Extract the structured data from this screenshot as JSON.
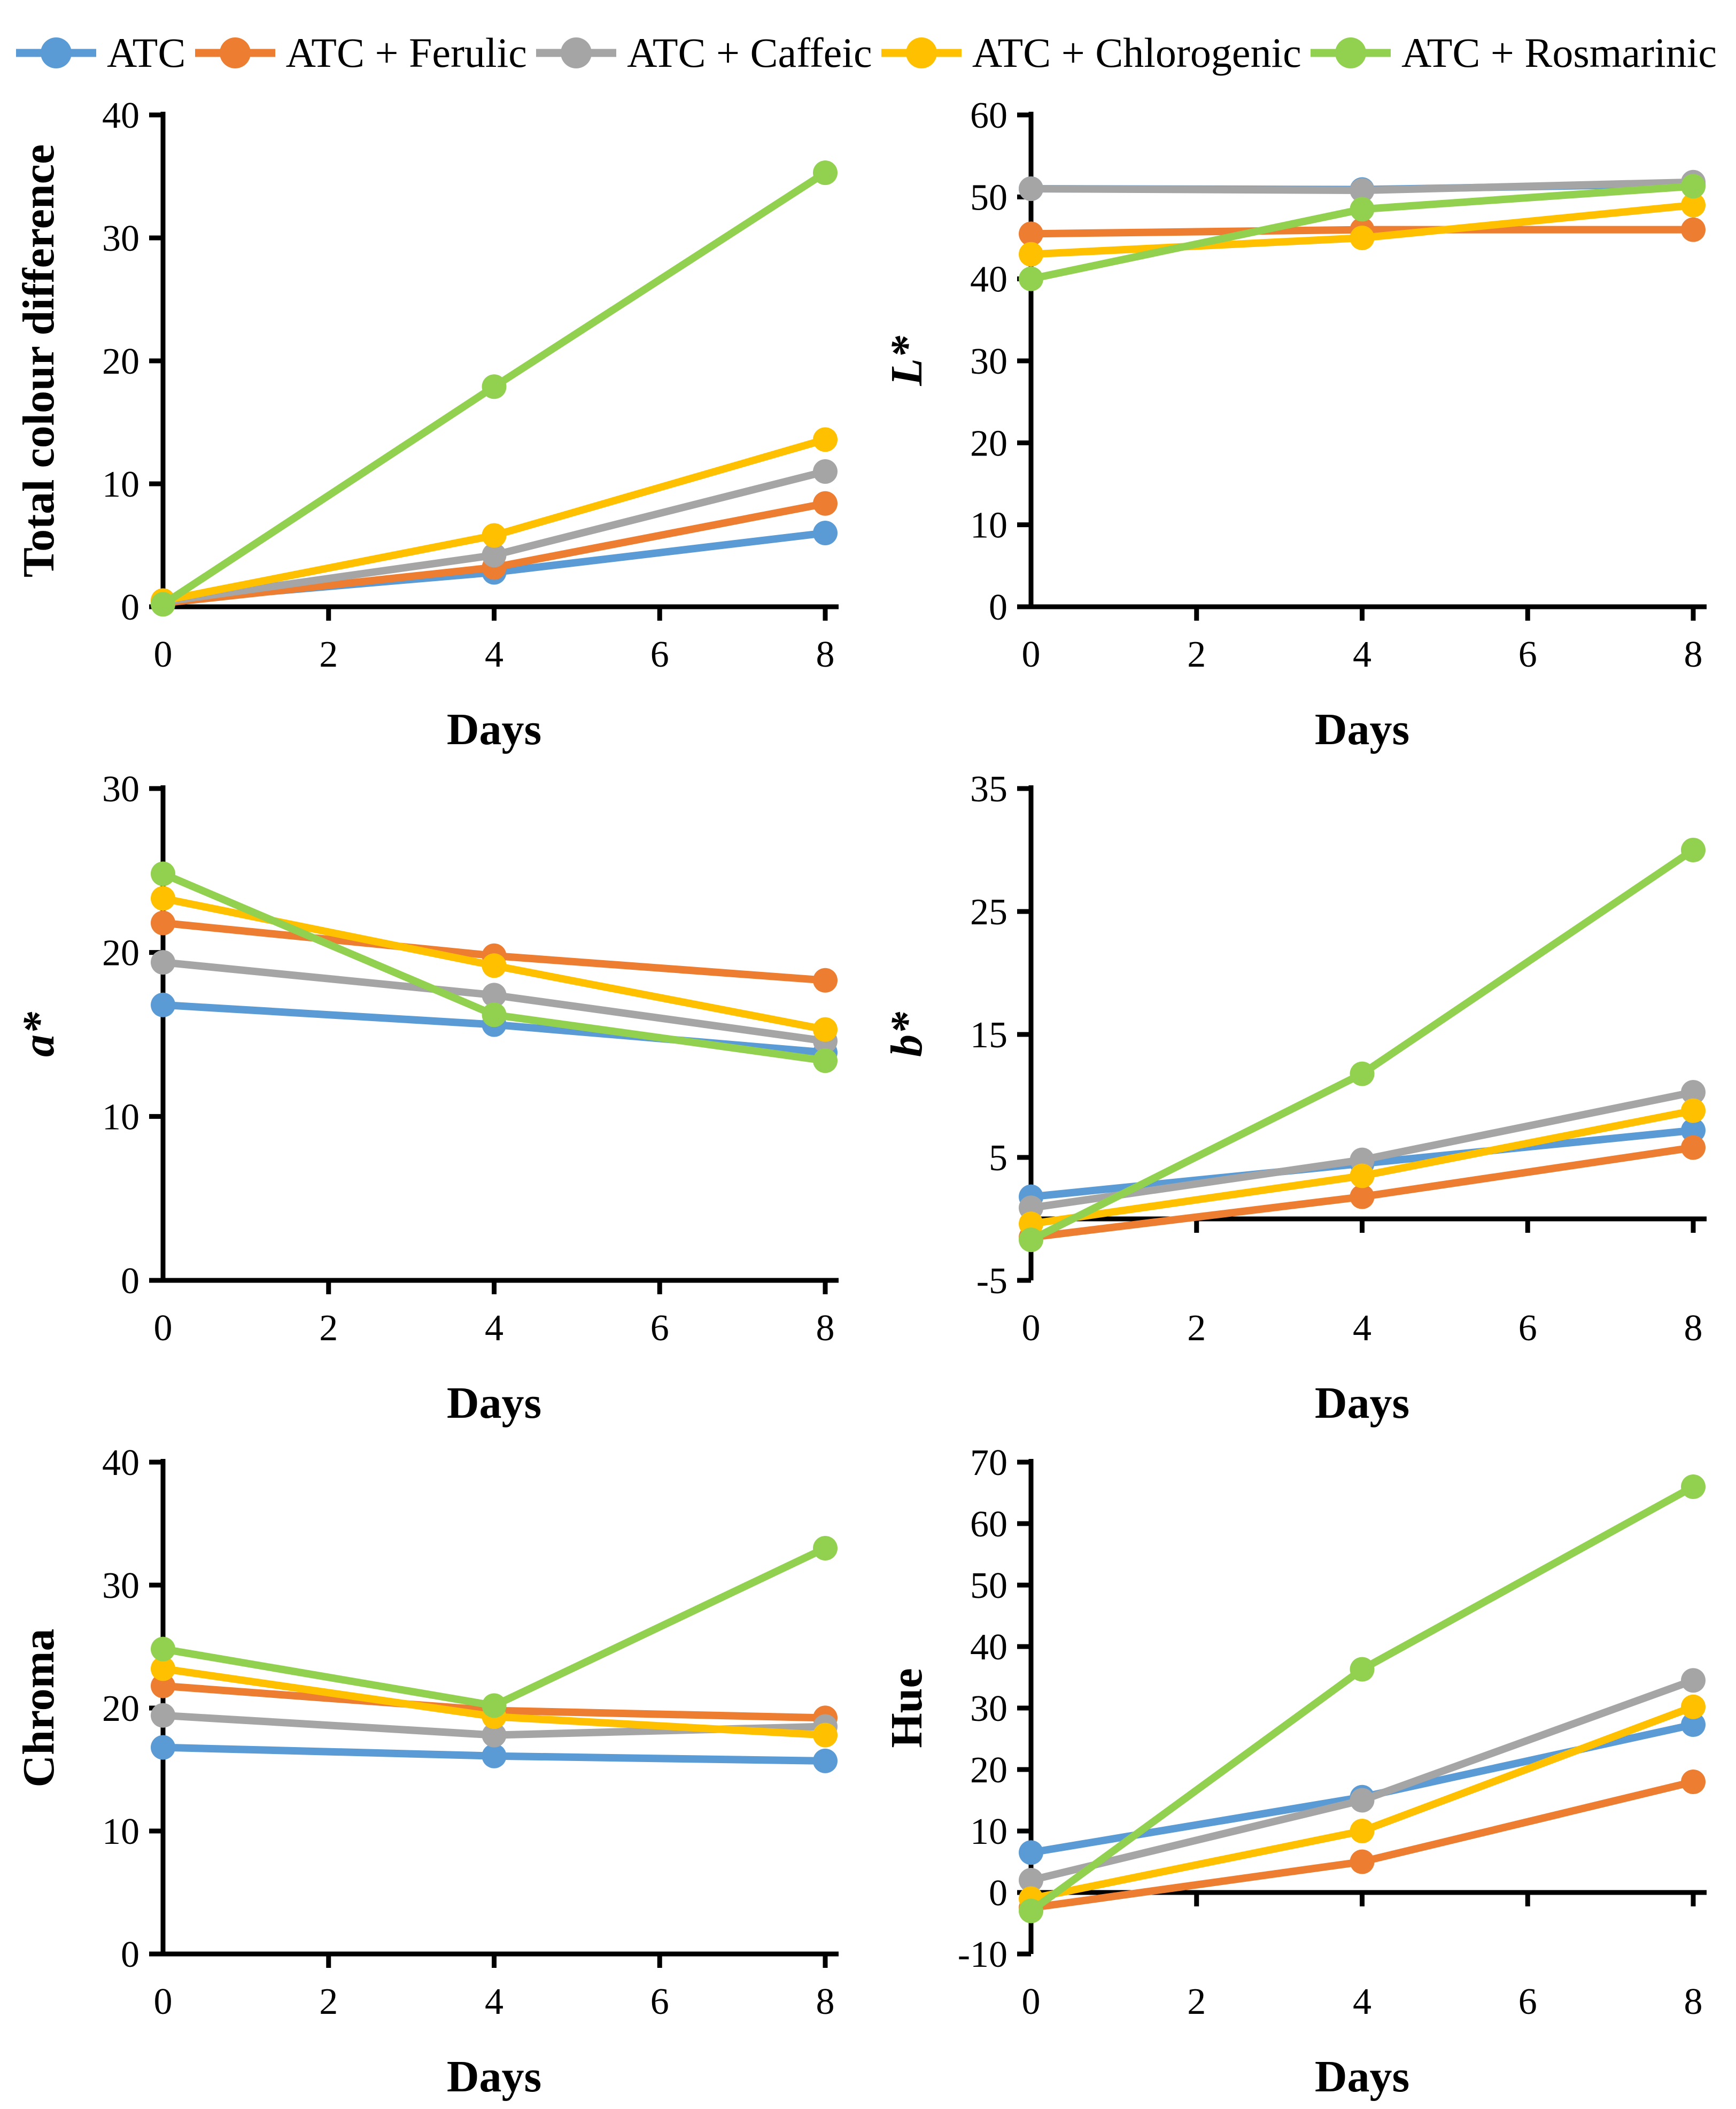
{
  "legend": {
    "position": "top",
    "items": [
      {
        "label": "ATC",
        "color": "#5B9BD5"
      },
      {
        "label": "ATC + Ferulic",
        "color": "#ED7D31"
      },
      {
        "label": "ATC + Caffeic",
        "color": "#A5A5A5"
      },
      {
        "label": "ATC + Chlorogenic",
        "color": "#FFC000"
      },
      {
        "label": "ATC + Rosmarinic",
        "color": "#92D050"
      }
    ]
  },
  "chart_data": [
    {
      "type": "line",
      "ylabel": "Total colour difference",
      "ylabel_italic": false,
      "xlabel": "Days",
      "x": [
        0,
        4,
        8
      ],
      "xticks": [
        0,
        2,
        4,
        6,
        8
      ],
      "ylim": [
        0,
        40
      ],
      "yticks": [
        0,
        10,
        20,
        30,
        40
      ],
      "axis_cross_y": 0,
      "grid": false,
      "series": [
        {
          "name": "ATC",
          "color": "#5B9BD5",
          "values": [
            0.5,
            2.8,
            6.0
          ]
        },
        {
          "name": "ATC + Ferulic",
          "color": "#ED7D31",
          "values": [
            0.3,
            3.2,
            8.4
          ]
        },
        {
          "name": "ATC + Caffeic",
          "color": "#A5A5A5",
          "values": [
            0.4,
            4.2,
            11.0
          ]
        },
        {
          "name": "ATC + Chlorogenic",
          "color": "#FFC000",
          "values": [
            0.5,
            5.8,
            13.6
          ]
        },
        {
          "name": "ATC + Rosmarinic",
          "color": "#92D050",
          "values": [
            0.2,
            17.9,
            35.3
          ]
        }
      ]
    },
    {
      "type": "line",
      "ylabel": "L*",
      "ylabel_italic": true,
      "xlabel": "Days",
      "x": [
        0,
        4,
        8
      ],
      "xticks": [
        0,
        2,
        4,
        6,
        8
      ],
      "ylim": [
        0,
        60
      ],
      "yticks": [
        0,
        10,
        20,
        30,
        40,
        50,
        60
      ],
      "axis_cross_y": 0,
      "grid": false,
      "series": [
        {
          "name": "ATC",
          "color": "#5B9BD5",
          "values": [
            51.0,
            50.9,
            51.6
          ]
        },
        {
          "name": "ATC + Ferulic",
          "color": "#ED7D31",
          "values": [
            45.5,
            46.0,
            46.0
          ]
        },
        {
          "name": "ATC + Caffeic",
          "color": "#A5A5A5",
          "values": [
            51.0,
            50.8,
            51.8
          ]
        },
        {
          "name": "ATC + Chlorogenic",
          "color": "#FFC000",
          "values": [
            43.0,
            45.0,
            49.0
          ]
        },
        {
          "name": "ATC + Rosmarinic",
          "color": "#92D050",
          "values": [
            40.0,
            48.5,
            51.3
          ]
        }
      ]
    },
    {
      "type": "line",
      "ylabel": "a*",
      "ylabel_italic": true,
      "xlabel": "Days",
      "x": [
        0,
        4,
        8
      ],
      "xticks": [
        0,
        2,
        4,
        6,
        8
      ],
      "ylim": [
        0,
        30
      ],
      "yticks": [
        0,
        10,
        20,
        30
      ],
      "axis_cross_y": 0,
      "grid": false,
      "series": [
        {
          "name": "ATC",
          "color": "#5B9BD5",
          "values": [
            16.8,
            15.6,
            13.9
          ]
        },
        {
          "name": "ATC + Ferulic",
          "color": "#ED7D31",
          "values": [
            21.8,
            19.8,
            18.3
          ]
        },
        {
          "name": "ATC + Caffeic",
          "color": "#A5A5A5",
          "values": [
            19.4,
            17.4,
            14.6
          ]
        },
        {
          "name": "ATC + Chlorogenic",
          "color": "#FFC000",
          "values": [
            23.3,
            19.2,
            15.3
          ]
        },
        {
          "name": "ATC + Rosmarinic",
          "color": "#92D050",
          "values": [
            24.8,
            16.2,
            13.4
          ]
        }
      ]
    },
    {
      "type": "line",
      "ylabel": "b*",
      "ylabel_italic": true,
      "xlabel": "Days",
      "x": [
        0,
        4,
        8
      ],
      "xticks": [
        0,
        2,
        4,
        6,
        8
      ],
      "ylim": [
        -5,
        35
      ],
      "yticks": [
        -5,
        5,
        15,
        25,
        35
      ],
      "axis_cross_y": 0,
      "grid": false,
      "series": [
        {
          "name": "ATC",
          "color": "#5B9BD5",
          "values": [
            1.8,
            4.5,
            7.2
          ]
        },
        {
          "name": "ATC + Ferulic",
          "color": "#ED7D31",
          "values": [
            -1.5,
            1.8,
            5.8
          ]
        },
        {
          "name": "ATC + Caffeic",
          "color": "#A5A5A5",
          "values": [
            0.9,
            4.8,
            10.3
          ]
        },
        {
          "name": "ATC + Chlorogenic",
          "color": "#FFC000",
          "values": [
            -0.4,
            3.5,
            8.8
          ]
        },
        {
          "name": "ATC + Rosmarinic",
          "color": "#92D050",
          "values": [
            -1.7,
            11.8,
            30.0
          ]
        }
      ]
    },
    {
      "type": "line",
      "ylabel": "Chroma",
      "ylabel_italic": false,
      "xlabel": "Days",
      "x": [
        0,
        4,
        8
      ],
      "xticks": [
        0,
        2,
        4,
        6,
        8
      ],
      "ylim": [
        0,
        40
      ],
      "yticks": [
        0,
        10,
        20,
        30,
        40
      ],
      "axis_cross_y": 0,
      "grid": false,
      "series": [
        {
          "name": "ATC",
          "color": "#5B9BD5",
          "values": [
            16.8,
            16.1,
            15.7
          ]
        },
        {
          "name": "ATC + Ferulic",
          "color": "#ED7D31",
          "values": [
            21.8,
            19.8,
            19.2
          ]
        },
        {
          "name": "ATC + Caffeic",
          "color": "#A5A5A5",
          "values": [
            19.4,
            17.8,
            18.5
          ]
        },
        {
          "name": "ATC + Chlorogenic",
          "color": "#FFC000",
          "values": [
            23.2,
            19.3,
            17.8
          ]
        },
        {
          "name": "ATC + Rosmarinic",
          "color": "#92D050",
          "values": [
            24.8,
            20.2,
            33.0
          ]
        }
      ]
    },
    {
      "type": "line",
      "ylabel": "Hue",
      "ylabel_italic": false,
      "xlabel": "Days",
      "x": [
        0,
        4,
        8
      ],
      "xticks": [
        0,
        2,
        4,
        6,
        8
      ],
      "ylim": [
        -10,
        70
      ],
      "yticks": [
        -10,
        0,
        10,
        20,
        30,
        40,
        50,
        60,
        70
      ],
      "axis_cross_y": 0,
      "grid": false,
      "series": [
        {
          "name": "ATC",
          "color": "#5B9BD5",
          "values": [
            6.5,
            15.5,
            27.3
          ]
        },
        {
          "name": "ATC + Ferulic",
          "color": "#ED7D31",
          "values": [
            -2.5,
            5.0,
            18.0
          ]
        },
        {
          "name": "ATC + Caffeic",
          "color": "#A5A5A5",
          "values": [
            2.0,
            15.0,
            34.5
          ]
        },
        {
          "name": "ATC + Chlorogenic",
          "color": "#FFC000",
          "values": [
            -1.0,
            10.0,
            30.2
          ]
        },
        {
          "name": "ATC + Rosmarinic",
          "color": "#92D050",
          "values": [
            -3.0,
            36.3,
            66.0
          ]
        }
      ]
    }
  ]
}
